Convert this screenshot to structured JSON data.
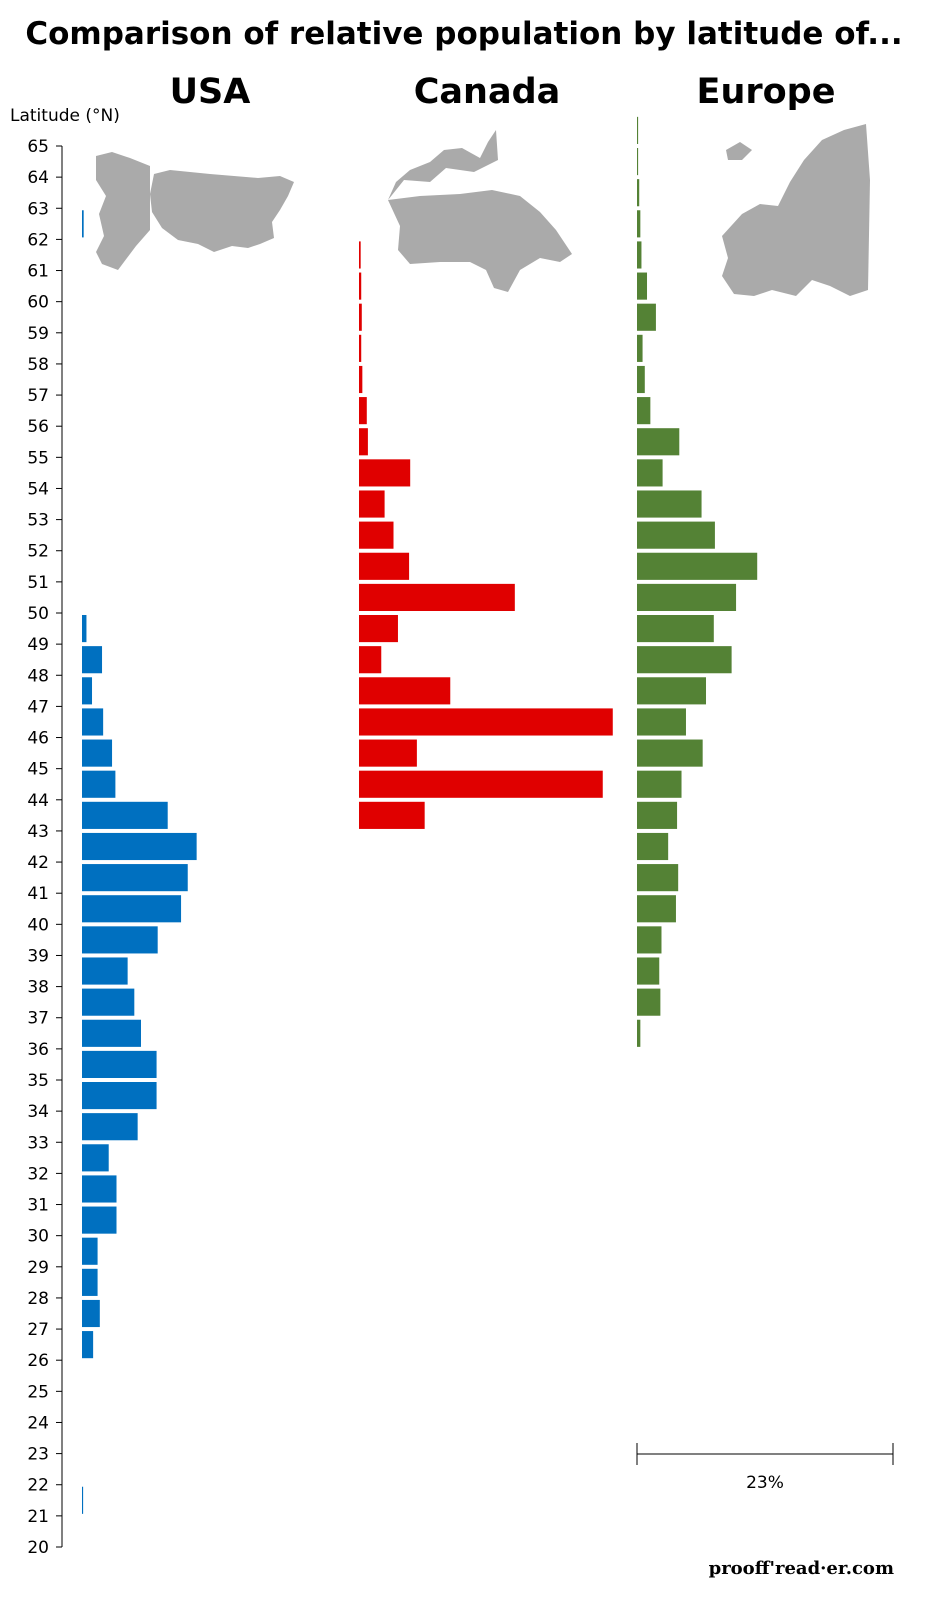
{
  "chart_data": {
    "type": "bar",
    "orientation": "horizontal",
    "title": "Comparison of relative population by latitude of...",
    "ylabel": "Latitude (°N)",
    "ylim": [
      20,
      65
    ],
    "latitudes": [
      65,
      64,
      63,
      62,
      61,
      60,
      59,
      58,
      57,
      56,
      55,
      54,
      53,
      52,
      51,
      50,
      49,
      48,
      47,
      46,
      45,
      44,
      43,
      42,
      41,
      40,
      39,
      38,
      37,
      36,
      35,
      34,
      33,
      32,
      31,
      30,
      29,
      28,
      27,
      26,
      25,
      24,
      23,
      22,
      21,
      20
    ],
    "scale": {
      "label": "23%",
      "value": 23
    },
    "series": [
      {
        "name": "USA",
        "color": "#0070c0",
        "data": [
          {
            "lat": 62,
            "value": 0.15
          },
          {
            "lat": 49,
            "value": 0.4
          },
          {
            "lat": 48,
            "value": 1.8
          },
          {
            "lat": 47,
            "value": 0.9
          },
          {
            "lat": 46,
            "value": 1.9
          },
          {
            "lat": 45,
            "value": 2.7
          },
          {
            "lat": 44,
            "value": 3.0
          },
          {
            "lat": 43,
            "value": 7.7
          },
          {
            "lat": 42,
            "value": 10.3
          },
          {
            "lat": 41,
            "value": 9.5
          },
          {
            "lat": 40,
            "value": 8.9
          },
          {
            "lat": 39,
            "value": 6.8
          },
          {
            "lat": 38,
            "value": 4.1
          },
          {
            "lat": 37,
            "value": 4.7
          },
          {
            "lat": 36,
            "value": 5.3
          },
          {
            "lat": 35,
            "value": 6.7
          },
          {
            "lat": 34,
            "value": 6.7
          },
          {
            "lat": 33,
            "value": 5.0
          },
          {
            "lat": 32,
            "value": 2.4
          },
          {
            "lat": 31,
            "value": 3.1
          },
          {
            "lat": 30,
            "value": 3.1
          },
          {
            "lat": 29,
            "value": 1.4
          },
          {
            "lat": 28,
            "value": 1.4
          },
          {
            "lat": 27,
            "value": 1.6
          },
          {
            "lat": 26,
            "value": 1.0
          },
          {
            "lat": 21,
            "value": 0.1
          }
        ]
      },
      {
        "name": "Canada",
        "color": "#e00000",
        "data": [
          {
            "lat": 61,
            "value": 0.15
          },
          {
            "lat": 60,
            "value": 0.2
          },
          {
            "lat": 59,
            "value": 0.25
          },
          {
            "lat": 58,
            "value": 0.2
          },
          {
            "lat": 57,
            "value": 0.3
          },
          {
            "lat": 56,
            "value": 0.7
          },
          {
            "lat": 55,
            "value": 0.8
          },
          {
            "lat": 54,
            "value": 4.6
          },
          {
            "lat": 53,
            "value": 2.3
          },
          {
            "lat": 52,
            "value": 3.1
          },
          {
            "lat": 51,
            "value": 4.5
          },
          {
            "lat": 50,
            "value": 14.0
          },
          {
            "lat": 49,
            "value": 3.5
          },
          {
            "lat": 48,
            "value": 2.0
          },
          {
            "lat": 47,
            "value": 8.2
          },
          {
            "lat": 46,
            "value": 22.8
          },
          {
            "lat": 45,
            "value": 5.2
          },
          {
            "lat": 44,
            "value": 21.9
          },
          {
            "lat": 43,
            "value": 5.9
          }
        ]
      },
      {
        "name": "Europe",
        "color": "#548235",
        "data": [
          {
            "lat": 65,
            "value": 0.1
          },
          {
            "lat": 64,
            "value": 0.1
          },
          {
            "lat": 63,
            "value": 0.2
          },
          {
            "lat": 62,
            "value": 0.3
          },
          {
            "lat": 61,
            "value": 0.4
          },
          {
            "lat": 60,
            "value": 0.9
          },
          {
            "lat": 59,
            "value": 1.7
          },
          {
            "lat": 58,
            "value": 0.5
          },
          {
            "lat": 57,
            "value": 0.7
          },
          {
            "lat": 56,
            "value": 1.2
          },
          {
            "lat": 55,
            "value": 3.8
          },
          {
            "lat": 54,
            "value": 2.3
          },
          {
            "lat": 53,
            "value": 5.8
          },
          {
            "lat": 52,
            "value": 7.0
          },
          {
            "lat": 51,
            "value": 10.8
          },
          {
            "lat": 50,
            "value": 8.9
          },
          {
            "lat": 49,
            "value": 6.9
          },
          {
            "lat": 48,
            "value": 8.5
          },
          {
            "lat": 47,
            "value": 6.2
          },
          {
            "lat": 46,
            "value": 4.4
          },
          {
            "lat": 45,
            "value": 5.9
          },
          {
            "lat": 44,
            "value": 4.0
          },
          {
            "lat": 43,
            "value": 3.6
          },
          {
            "lat": 42,
            "value": 2.8
          },
          {
            "lat": 41,
            "value": 3.7
          },
          {
            "lat": 40,
            "value": 3.5
          },
          {
            "lat": 39,
            "value": 2.2
          },
          {
            "lat": 38,
            "value": 2.0
          },
          {
            "lat": 37,
            "value": 2.1
          },
          {
            "lat": 36,
            "value": 0.3
          }
        ]
      }
    ]
  },
  "credit": "prooff'read·er.com",
  "maps": [
    "usa-map",
    "canada-map",
    "europe-map"
  ]
}
